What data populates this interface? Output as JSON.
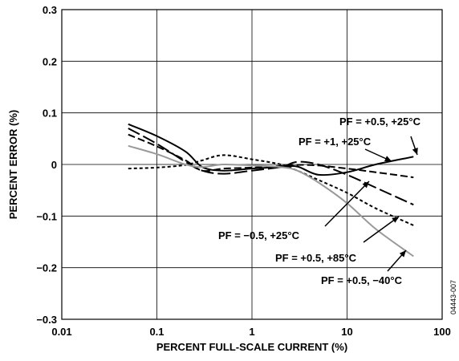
{
  "chart_data": {
    "type": "line",
    "title": "",
    "xlabel": "PERCENT FULL-SCALE CURRENT (%)",
    "ylabel": "PERCENT ERROR (%)",
    "x_scale": "log",
    "xlim": [
      0.01,
      100
    ],
    "ylim": [
      -0.3,
      0.3
    ],
    "grid": true,
    "x_ticks": [
      0.01,
      0.1,
      1,
      10,
      100
    ],
    "x_tick_labels": [
      "0.01",
      "0.1",
      "1",
      "10",
      "100"
    ],
    "y_ticks": [
      0.3,
      0.2,
      0.1,
      0,
      -0.1,
      -0.2,
      -0.3
    ],
    "y_tick_labels": [
      "0.3",
      "0.2",
      "0.1",
      "0",
      "−0.1",
      "−0.2",
      "−0.3"
    ],
    "figure_code": "04443-007",
    "series": [
      {
        "name": "PF = +0.5, +25°C",
        "style": "solid",
        "color": "#000000",
        "x": [
          0.05,
          0.1,
          0.2,
          0.3,
          0.5,
          1,
          2,
          3,
          5,
          10,
          20,
          50
        ],
        "y": [
          0.078,
          0.055,
          0.025,
          -0.005,
          -0.012,
          -0.008,
          -0.005,
          -0.004,
          -0.02,
          -0.015,
          0.0,
          0.015
        ]
      },
      {
        "name": "PF = +1, +25°C",
        "style": "dash-short",
        "color": "#000000",
        "x": [
          0.05,
          0.1,
          0.2,
          0.3,
          0.5,
          1,
          2,
          3,
          5,
          10,
          20,
          50
        ],
        "y": [
          0.058,
          0.035,
          0.008,
          -0.012,
          -0.008,
          -0.006,
          -0.003,
          -0.001,
          -0.002,
          -0.008,
          -0.015,
          -0.025
        ]
      },
      {
        "name": "PF = −0.5, +25°C",
        "style": "dash-long",
        "color": "#000000",
        "x": [
          0.05,
          0.1,
          0.2,
          0.3,
          0.5,
          1,
          2,
          3,
          5,
          10,
          20,
          50
        ],
        "y": [
          0.07,
          0.04,
          0.005,
          -0.012,
          -0.018,
          -0.012,
          -0.005,
          0.005,
          0.0,
          -0.02,
          -0.045,
          -0.078
        ]
      },
      {
        "name": "PF = +0.5, +85°C",
        "style": "dotted",
        "color": "#000000",
        "x": [
          0.05,
          0.1,
          0.2,
          0.3,
          0.5,
          1,
          2,
          3,
          5,
          10,
          20,
          50
        ],
        "y": [
          -0.008,
          -0.006,
          -0.001,
          0.008,
          0.018,
          0.01,
          0.0,
          -0.012,
          -0.03,
          -0.055,
          -0.085,
          -0.118
        ]
      },
      {
        "name": "PF = +0.5, −40°C",
        "style": "solid",
        "color": "#999999",
        "x": [
          0.05,
          0.1,
          0.2,
          0.3,
          0.5,
          1,
          2,
          3,
          5,
          10,
          20,
          50
        ],
        "y": [
          0.036,
          0.02,
          0.0,
          -0.005,
          0.0,
          -0.002,
          -0.005,
          -0.012,
          -0.035,
          -0.075,
          -0.125,
          -0.178
        ]
      }
    ],
    "annotations": [
      {
        "text": "PF = +0.5, +25°C",
        "target_series": 0
      },
      {
        "text": "PF = +1, +25°C",
        "target_series": 1
      },
      {
        "text": "PF = −0.5, +25°C",
        "target_series": 2
      },
      {
        "text": "PF = +0.5, +85°C",
        "target_series": 3
      },
      {
        "text": "PF = +0.5, −40°C",
        "target_series": 4
      }
    ]
  }
}
